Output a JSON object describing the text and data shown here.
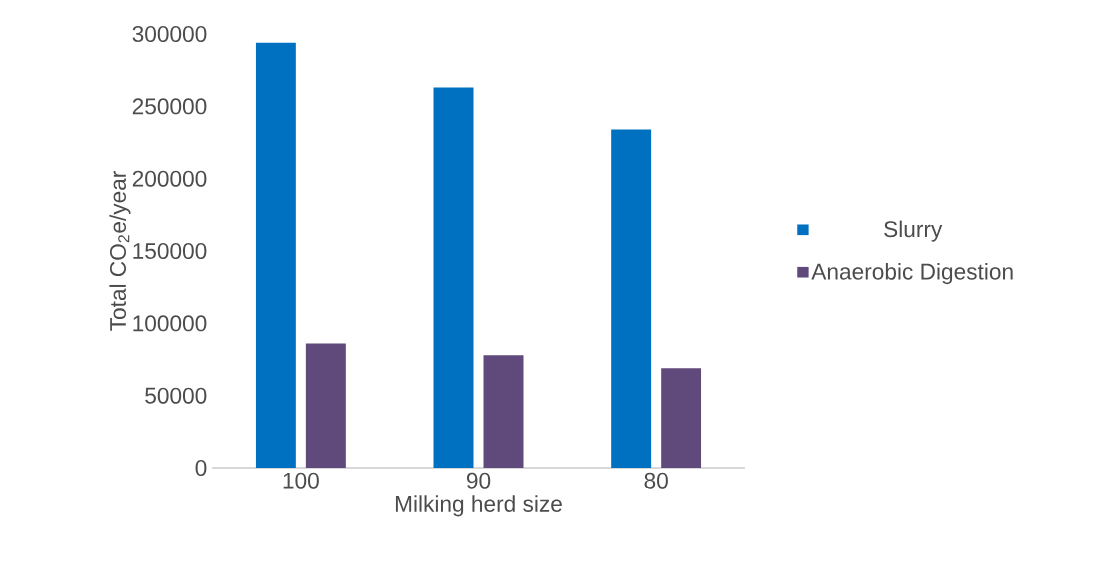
{
  "chart_data": {
    "type": "bar",
    "xlabel": "Milking herd size",
    "ylabel": "Total CO$_{2}$e/year",
    "categories": [
      "100",
      "90",
      "80"
    ],
    "series": [
      {
        "name": "Slurry",
        "color": "#0070c0",
        "values": [
          294000,
          263000,
          234000
        ]
      },
      {
        "name": "Anaerobic Digestion",
        "color": "#604a7b",
        "values": [
          86000,
          78000,
          69000
        ]
      }
    ],
    "ylim": [
      0,
      300000
    ],
    "yticks": [
      0,
      50000,
      100000,
      150000,
      200000,
      250000,
      300000
    ],
    "legend": "right"
  }
}
